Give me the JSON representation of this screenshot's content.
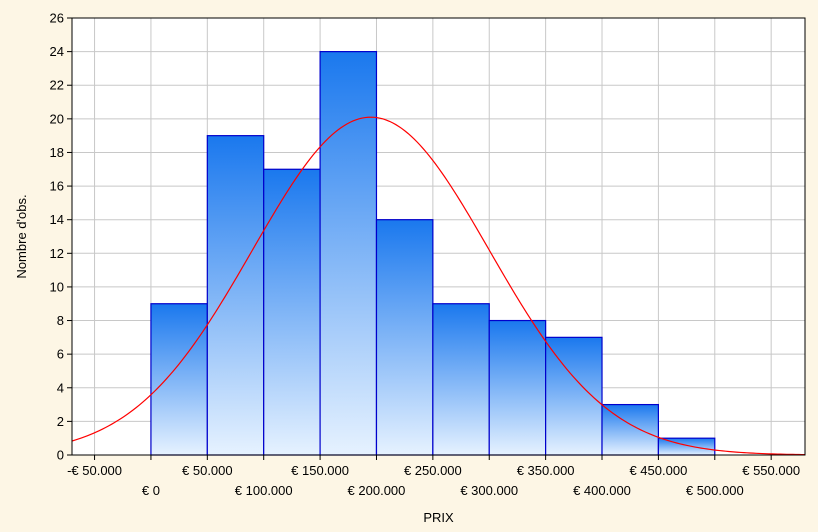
{
  "chart_data": {
    "type": "bar",
    "title": "",
    "xlabel": "PRIX",
    "ylabel": "Nombre d'obs.",
    "bins": [
      {
        "from": 0,
        "to": 50000,
        "count": 9
      },
      {
        "from": 50000,
        "to": 100000,
        "count": 19
      },
      {
        "from": 100000,
        "to": 150000,
        "count": 17
      },
      {
        "from": 150000,
        "to": 200000,
        "count": 24
      },
      {
        "from": 200000,
        "to": 250000,
        "count": 14
      },
      {
        "from": 250000,
        "to": 300000,
        "count": 9
      },
      {
        "from": 300000,
        "to": 350000,
        "count": 8
      },
      {
        "from": 350000,
        "to": 400000,
        "count": 7
      },
      {
        "from": 400000,
        "to": 450000,
        "count": 3
      },
      {
        "from": 450000,
        "to": 500000,
        "count": 1
      }
    ],
    "normal_curve": {
      "mean": 195000,
      "std": 105000,
      "peak": 20.1,
      "color": "#ff0000"
    },
    "xlim": [
      -70000,
      580000
    ],
    "ylim": [
      0,
      26
    ],
    "x_ticks": [
      {
        "value": -50000,
        "label": "-€ 50.000",
        "row": 1
      },
      {
        "value": 0,
        "label": "€ 0",
        "row": 2
      },
      {
        "value": 50000,
        "label": "€ 50.000",
        "row": 1
      },
      {
        "value": 100000,
        "label": "€ 100.000",
        "row": 2
      },
      {
        "value": 150000,
        "label": "€ 150.000",
        "row": 1
      },
      {
        "value": 200000,
        "label": "€ 200.000",
        "row": 2
      },
      {
        "value": 250000,
        "label": "€ 250.000",
        "row": 1
      },
      {
        "value": 300000,
        "label": "€ 300.000",
        "row": 2
      },
      {
        "value": 350000,
        "label": "€ 350.000",
        "row": 1
      },
      {
        "value": 400000,
        "label": "€ 400.000",
        "row": 2
      },
      {
        "value": 450000,
        "label": "€ 450.000",
        "row": 1
      },
      {
        "value": 500000,
        "label": "€ 500.000",
        "row": 2
      },
      {
        "value": 550000,
        "label": "€ 550.000",
        "row": 1
      }
    ],
    "y_ticks": [
      0,
      2,
      4,
      6,
      8,
      10,
      12,
      14,
      16,
      18,
      20,
      22,
      24,
      26
    ],
    "grid": true,
    "colors": {
      "bar_top": "#1a78ee",
      "bar_bottom": "#e6f2ff",
      "bar_stroke": "#0000cc",
      "grid": "#c8c8c8",
      "background": "#fdf6e5",
      "plot_background": "#ffffff"
    }
  }
}
